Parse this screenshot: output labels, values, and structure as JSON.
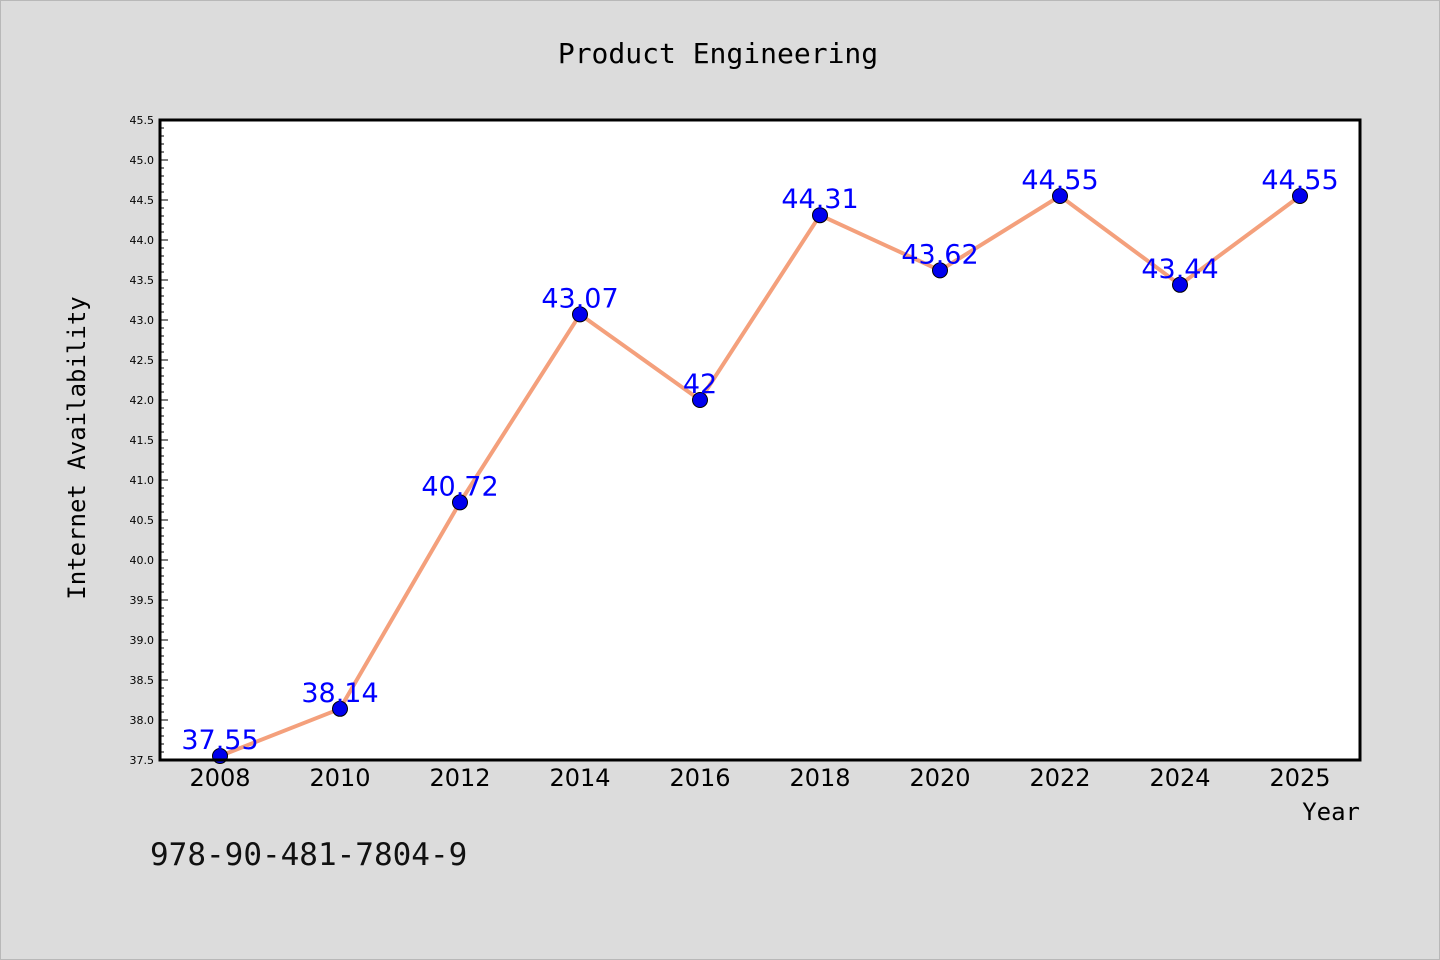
{
  "chart_data": {
    "type": "line",
    "title": "Product Engineering",
    "xlabel": "Year",
    "ylabel": "Internet Availability",
    "categories": [
      "2008",
      "2010",
      "2012",
      "2014",
      "2016",
      "2018",
      "2020",
      "2022",
      "2024",
      "2025"
    ],
    "series": [
      {
        "values": [
          37.55,
          38.14,
          40.72,
          43.07,
          42,
          44.31,
          43.62,
          44.55,
          43.44,
          44.55
        ],
        "data_labels": [
          "37.55",
          "38.14",
          "40.72",
          "43.07",
          "42",
          "44.31",
          "43.62",
          "44.55",
          "43.44",
          "44.55"
        ]
      }
    ],
    "ylim": [
      37.5,
      45.5
    ],
    "y_ticks": [
      "37.5",
      "38.0",
      "38.5",
      "39.0",
      "39.5",
      "40.0",
      "40.5",
      "41.0",
      "41.5",
      "42.0",
      "42.5",
      "43.0",
      "43.5",
      "44.0",
      "44.5",
      "45.0",
      "45.5"
    ],
    "grid": false,
    "legend": "none",
    "colors": {
      "line": "#f4a07c",
      "marker": "#0000ee",
      "label": "#0000ff",
      "background": "#dcdcdc",
      "plot_bg": "#ffffff"
    }
  },
  "annotation": "978-90-481-7804-9"
}
